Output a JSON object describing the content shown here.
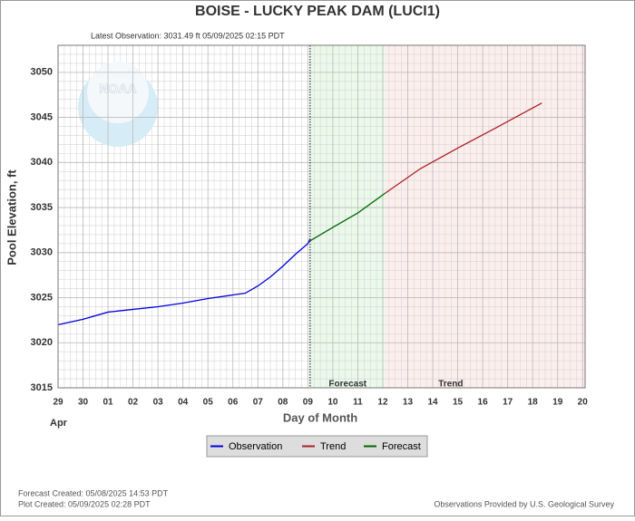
{
  "chart_data": {
    "type": "line",
    "title": "BOISE - LUCKY PEAK DAM  (LUCI1)",
    "subtitle": "Latest Observation: 3031.49 ft 05/09/2025 02:15 PDT",
    "y_label": "Pool Elevation, ft",
    "x_label": "Day of Month",
    "x_month": "Apr",
    "logo_text": "NOAA",
    "xlim": [
      0,
      21.1
    ],
    "ylim": [
      3015,
      3053
    ],
    "xticks": [
      {
        "value": 0,
        "label": "29"
      },
      {
        "value": 1,
        "label": "30"
      },
      {
        "value": 2,
        "label": "01"
      },
      {
        "value": 3,
        "label": "02"
      },
      {
        "value": 4,
        "label": "03"
      },
      {
        "value": 5,
        "label": "04"
      },
      {
        "value": 6,
        "label": "05"
      },
      {
        "value": 7,
        "label": "06"
      },
      {
        "value": 8,
        "label": "07"
      },
      {
        "value": 9,
        "label": "08"
      },
      {
        "value": 10,
        "label": "09"
      },
      {
        "value": 11,
        "label": "10"
      },
      {
        "value": 12,
        "label": "11"
      },
      {
        "value": 13,
        "label": "12"
      },
      {
        "value": 14,
        "label": "13"
      },
      {
        "value": 15,
        "label": "14"
      },
      {
        "value": 16,
        "label": "15"
      },
      {
        "value": 17,
        "label": "16"
      },
      {
        "value": 18,
        "label": "17"
      },
      {
        "value": 19,
        "label": "18"
      },
      {
        "value": 20,
        "label": "19"
      },
      {
        "value": 21,
        "label": "20"
      }
    ],
    "yticks": [
      3015,
      3020,
      3025,
      3030,
      3035,
      3040,
      3045,
      3050
    ],
    "grid": true,
    "regions": [
      {
        "label": "Forecast",
        "x": [
          10.09,
          13.1
        ],
        "color": "#eaf9ea"
      },
      {
        "label": "Trend",
        "x": [
          13.1,
          21.1
        ],
        "color": "#fdeeee"
      }
    ],
    "series": [
      {
        "name": "Observation",
        "color": "#0000dd",
        "x": [
          0,
          1,
          2,
          3,
          4,
          5,
          6,
          7,
          7.5,
          8,
          8.5,
          9,
          9.5,
          10,
          10.09
        ],
        "values": [
          3022.0,
          3022.6,
          3023.4,
          3023.7,
          3024.0,
          3024.4,
          3024.9,
          3025.3,
          3025.5,
          3026.3,
          3027.3,
          3028.5,
          3029.8,
          3031.0,
          3031.5
        ]
      },
      {
        "name": "Trend",
        "color": "#aa2222",
        "x": [
          13.1,
          14.5,
          16,
          17.5,
          19.37
        ],
        "values": [
          3036.6,
          3039.3,
          3041.6,
          3043.8,
          3046.6
        ]
      },
      {
        "name": "Forecast",
        "color": "#006600",
        "x": [
          10.09,
          11,
          12,
          13.1
        ],
        "values": [
          3031.3,
          3032.8,
          3034.4,
          3036.6
        ]
      }
    ],
    "footer": {
      "forecast_created": "Forecast Created: 05/08/2025 14:53 PDT",
      "plot_created": "Plot Created: 05/09/2025 02:28 PDT",
      "source": "Observations Provided by U.S. Geological Survey"
    }
  }
}
